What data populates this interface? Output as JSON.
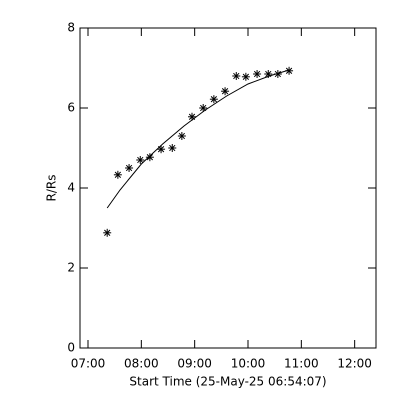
{
  "chart_data": {
    "type": "scatter",
    "x_label": "Start Time (25-May-25 06:54:07)",
    "y_label": "R/Rs",
    "color": "#000000",
    "xlim": [
      6.85,
      12.4
    ],
    "ylim": [
      0,
      8
    ],
    "xticks": [
      {
        "value": 7,
        "label": "07:00"
      },
      {
        "value": 8,
        "label": "08:00"
      },
      {
        "value": 9,
        "label": "09:00"
      },
      {
        "value": 10,
        "label": "10:00"
      },
      {
        "value": 11,
        "label": "11:00"
      },
      {
        "value": 12,
        "label": "12:00"
      }
    ],
    "yticks": [
      0,
      2,
      4,
      6,
      8
    ],
    "x": [
      7.36,
      7.56,
      7.77,
      7.98,
      8.16,
      8.37,
      8.58,
      8.76,
      8.95,
      9.16,
      9.36,
      9.57,
      9.78,
      9.96,
      10.17,
      10.38,
      10.56,
      10.77
    ],
    "values": [
      2.88,
      4.33,
      4.5,
      4.7,
      4.77,
      4.97,
      5.0,
      5.3,
      5.78,
      6.0,
      6.22,
      6.42,
      6.8,
      6.78,
      6.85,
      6.85,
      6.85,
      6.93
    ],
    "fit": {
      "x": [
        7.36,
        7.6,
        8.0,
        8.4,
        8.8,
        9.2,
        9.6,
        10.0,
        10.4,
        10.77
      ],
      "values": [
        3.5,
        3.95,
        4.6,
        5.1,
        5.55,
        5.95,
        6.3,
        6.6,
        6.8,
        6.95
      ]
    }
  }
}
